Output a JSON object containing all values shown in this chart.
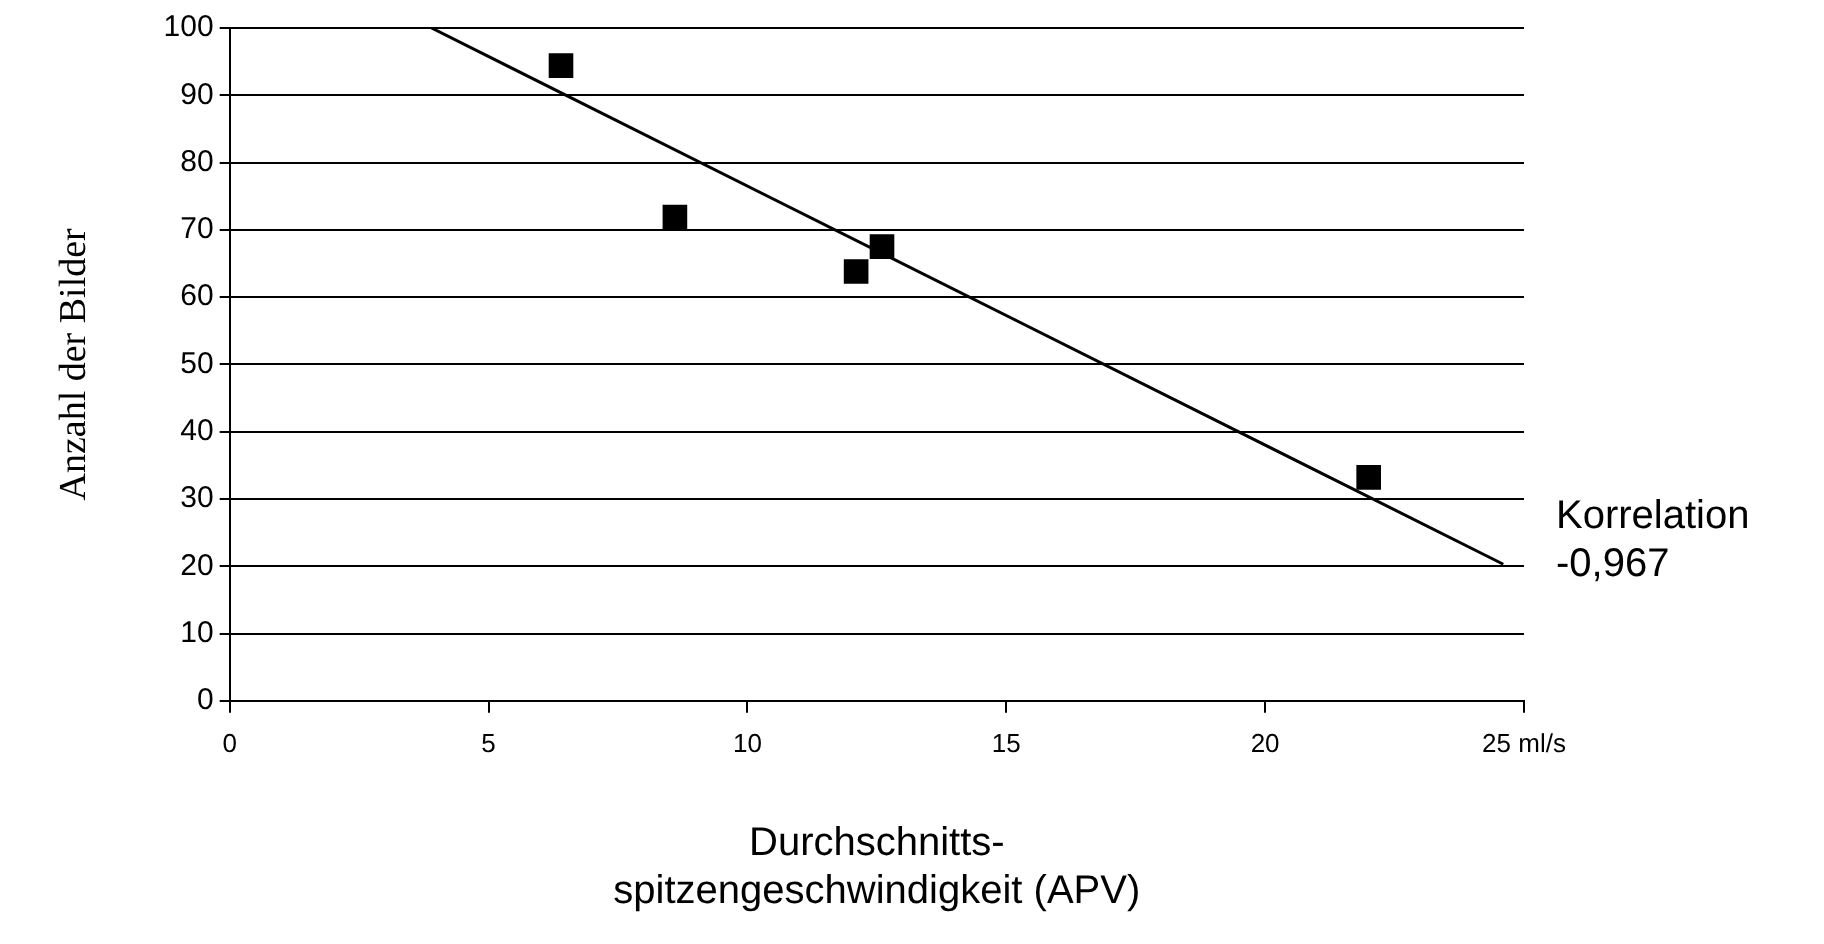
{
  "chart_data": {
    "type": "scatter",
    "xlabel": "Durchschnitts-\nspitzengeschwindigkeit (APV)",
    "ylabel": "Anzahl der Bilder",
    "annotations": [
      "Korrelation\n-0,967"
    ],
    "xlim": [
      0,
      25
    ],
    "xticks": [
      0,
      5,
      10,
      15,
      20,
      {
        "value": 25,
        "label": "25 ml/s"
      }
    ],
    "ylim": [
      0,
      100
    ],
    "yticks": [
      0,
      10,
      20,
      30,
      40,
      50,
      60,
      70,
      80,
      90,
      100
    ],
    "grid": "y",
    "legend": false,
    "series": [
      {
        "marker": "square",
        "color": "#000000",
        "x": [
          6.4,
          8.6,
          12.1,
          12.6,
          22.0
        ],
        "values": [
          94.4,
          71.9,
          63.8,
          67.5,
          33.2
        ]
      },
      {
        "type": "line",
        "marker": "none",
        "color": "#000000",
        "x": [
          3.9,
          24.6
        ],
        "values": [
          100,
          20.3
        ]
      }
    ]
  }
}
